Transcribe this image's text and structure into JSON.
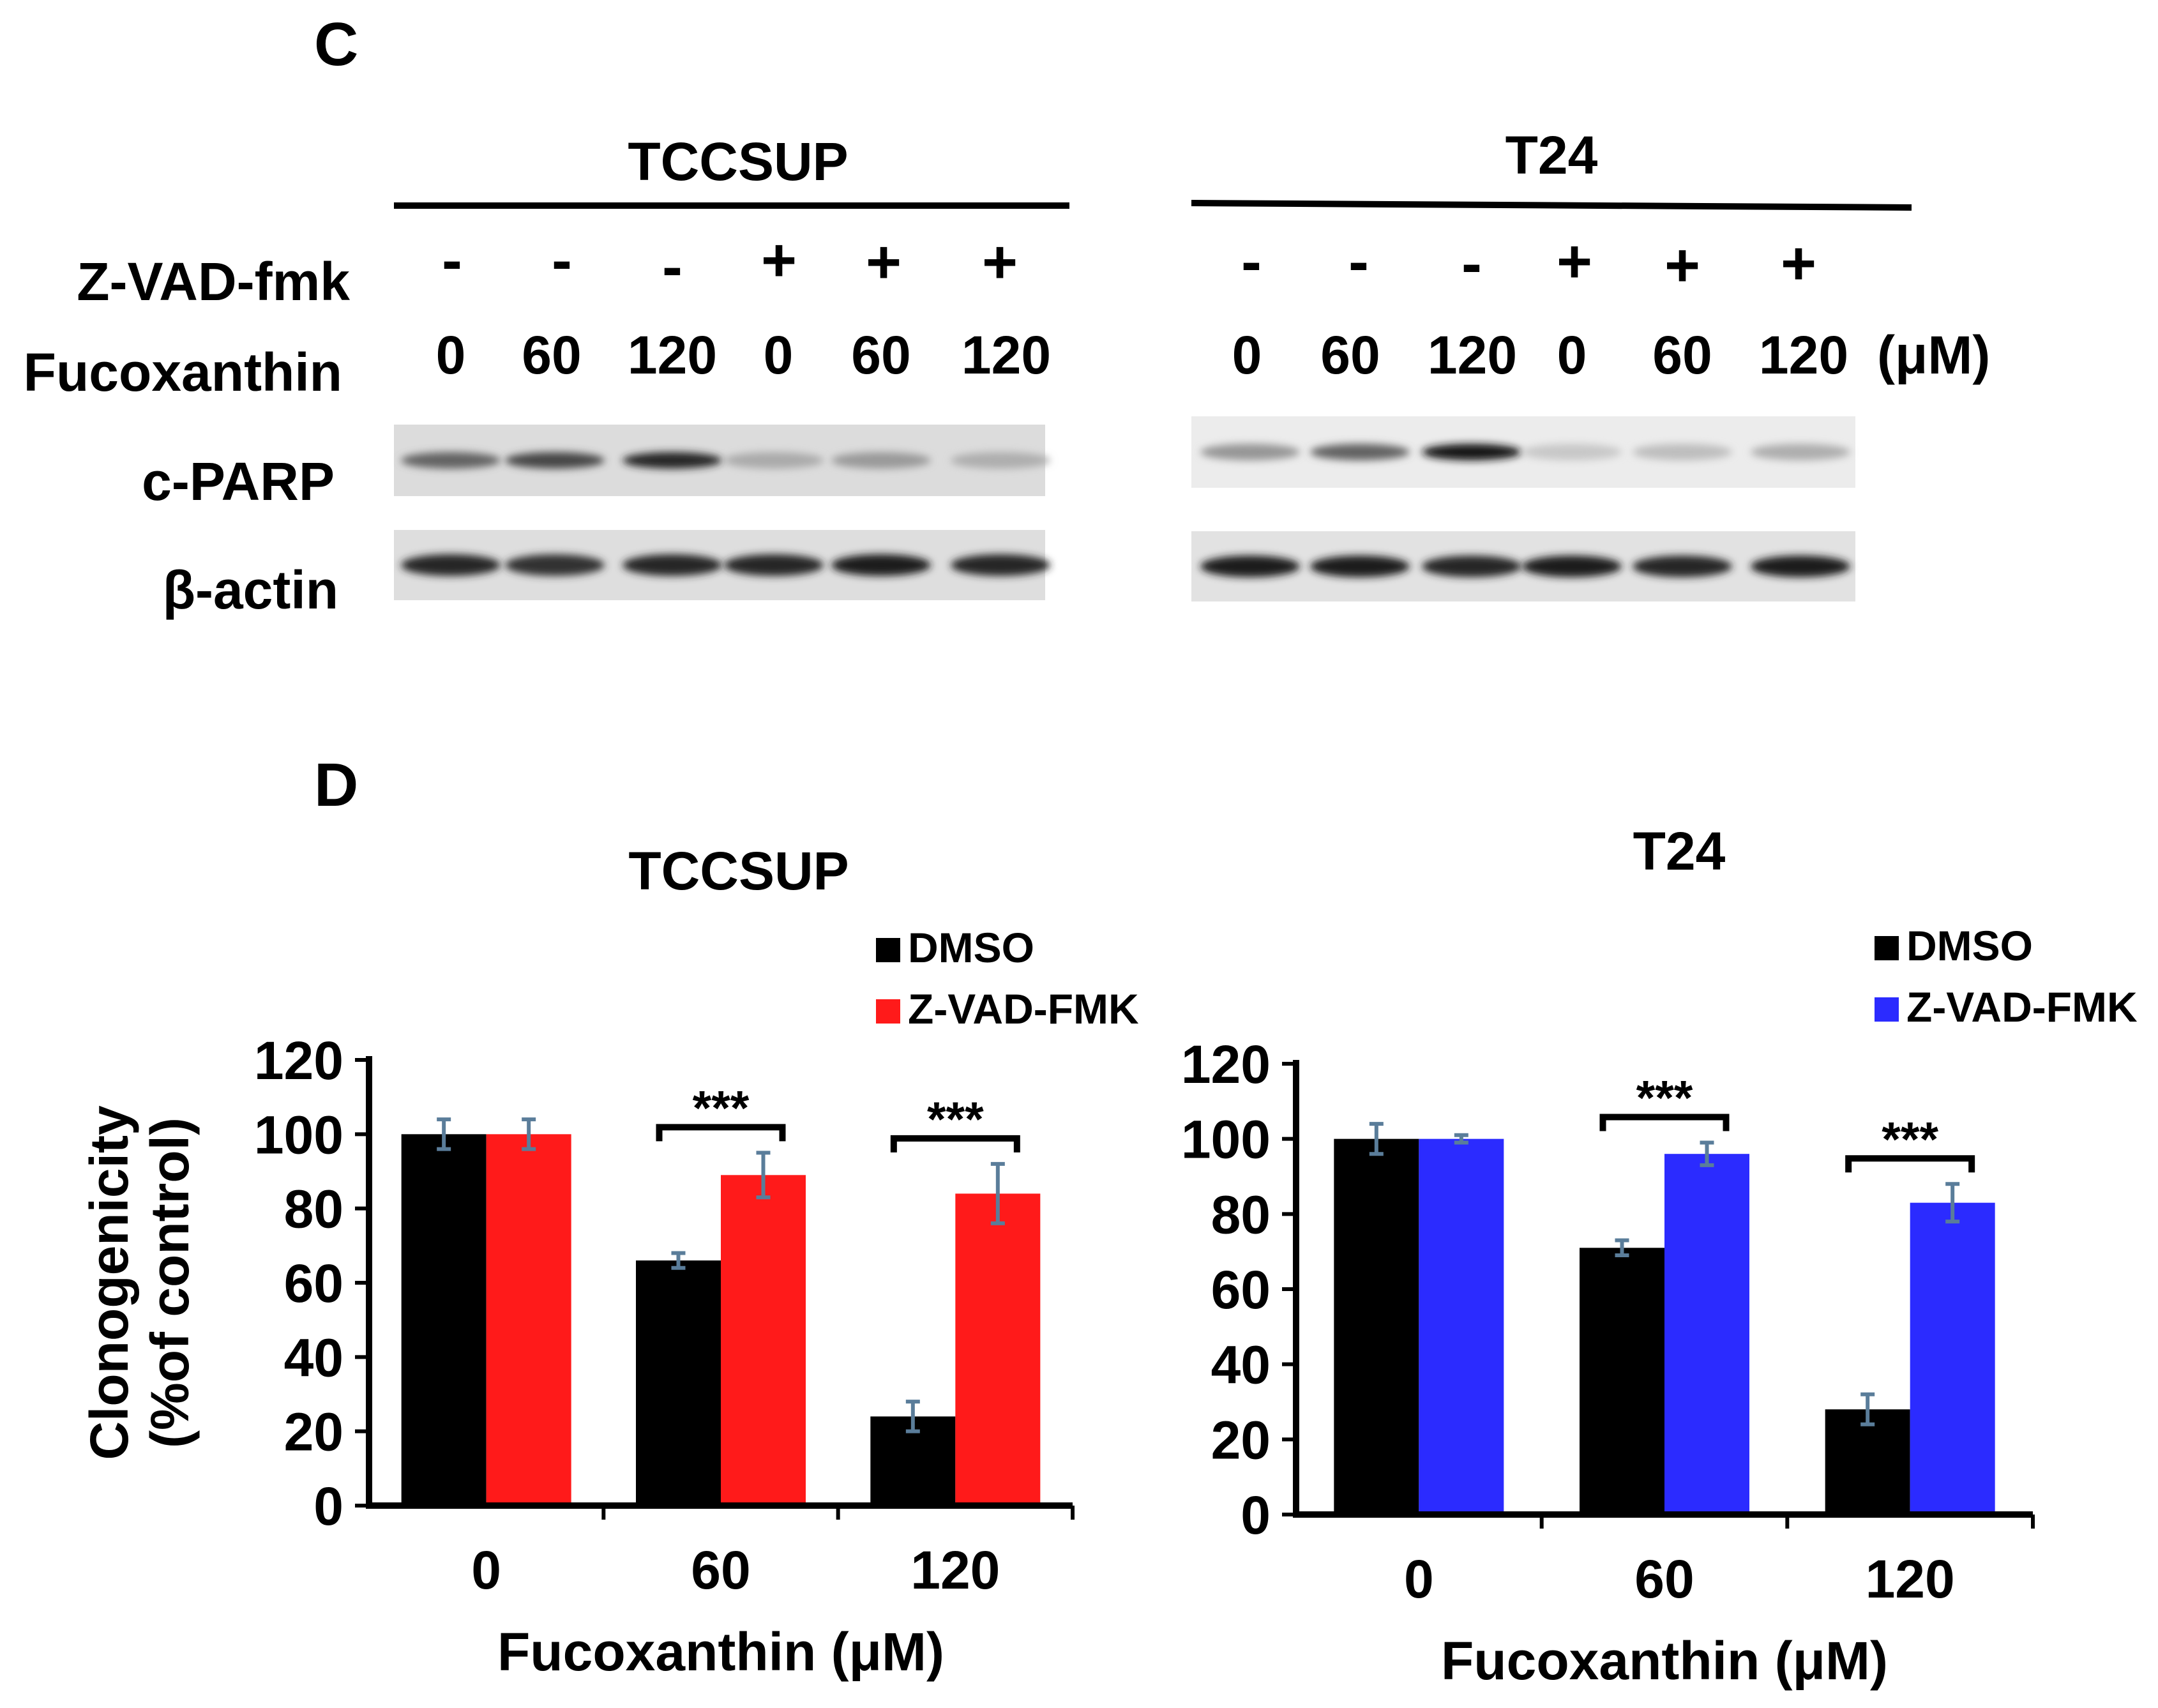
{
  "panel_c": {
    "label": "C",
    "row_labels": {
      "zvad": "Z-VAD-fmk",
      "fuco": "Fucoxanthin",
      "cparp": "c-PARP",
      "actin": "β-actin"
    },
    "unit_label": "(μM)",
    "blots": [
      {
        "cell_line": "TCCSUP",
        "zvad": [
          "-",
          "-",
          "-",
          "+",
          "+",
          "+"
        ],
        "doses": [
          "0",
          "60",
          "120",
          "0",
          "60",
          "120"
        ],
        "cparp_intensity": [
          0.55,
          0.7,
          0.85,
          0.2,
          0.28,
          0.18
        ],
        "actin_intensity": [
          0.85,
          0.8,
          0.85,
          0.85,
          0.9,
          0.85
        ]
      },
      {
        "cell_line": "T24",
        "zvad": [
          "-",
          "-",
          "-",
          "+",
          "+",
          "+"
        ],
        "doses": [
          "0",
          "60",
          "120",
          "0",
          "60",
          "120"
        ],
        "cparp_intensity": [
          0.3,
          0.55,
          0.95,
          0.05,
          0.1,
          0.18
        ],
        "actin_intensity": [
          0.9,
          0.9,
          0.85,
          0.9,
          0.85,
          0.9
        ]
      }
    ]
  },
  "panel_d": {
    "label": "D"
  },
  "colors": {
    "dmso": "#000000",
    "zvad_tccsup": "#ff1a1a",
    "zvad_t24": "#2b2bff",
    "error_bar": "#5a7d9a"
  },
  "chart_data": [
    {
      "type": "bar",
      "title": "TCCSUP",
      "xlabel": "Fucoxanthin (μM)",
      "ylabel_line1": "Clonogenicity",
      "ylabel_line2": "(%of control)",
      "categories": [
        "0",
        "60",
        "120"
      ],
      "ylim": [
        0,
        120
      ],
      "yticks": [
        0,
        20,
        40,
        60,
        80,
        100,
        120
      ],
      "significance": [
        "",
        "***",
        "***"
      ],
      "series": [
        {
          "name": "DMSO",
          "values": [
            100,
            66,
            24
          ],
          "errors": [
            4,
            2,
            4
          ]
        },
        {
          "name": "Z-VAD-FMK",
          "values": [
            100,
            89,
            84
          ],
          "errors": [
            4,
            6,
            8
          ]
        }
      ]
    },
    {
      "type": "bar",
      "title": "T24",
      "xlabel": "Fucoxanthin (μM)",
      "categories": [
        "0",
        "60",
        "120"
      ],
      "ylim": [
        0,
        120
      ],
      "yticks": [
        0,
        20,
        40,
        60,
        80,
        100,
        120
      ],
      "significance": [
        "",
        "***",
        "***"
      ],
      "series": [
        {
          "name": "DMSO",
          "values": [
            100,
            71,
            28
          ],
          "errors": [
            4,
            2,
            4
          ]
        },
        {
          "name": "Z-VAD-FMK",
          "values": [
            100,
            96,
            83
          ],
          "errors": [
            1,
            3,
            5
          ]
        }
      ]
    }
  ]
}
